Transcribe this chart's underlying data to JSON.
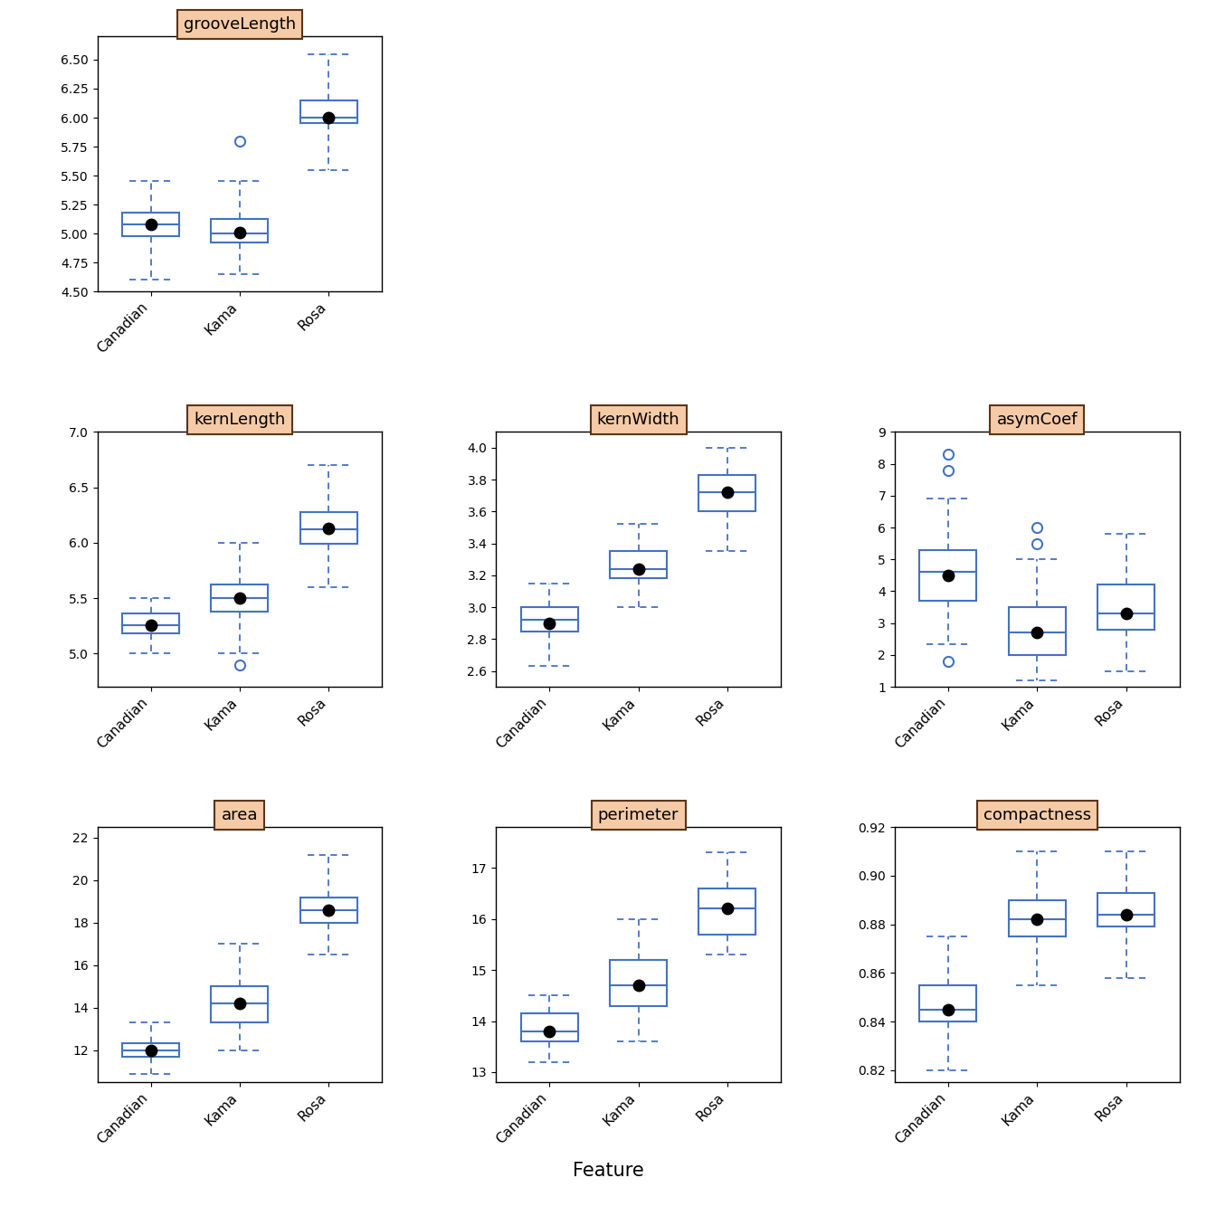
{
  "features": {
    "grooveLength": {
      "Canadian": {
        "q1": 4.98,
        "median": 5.08,
        "q3": 5.18,
        "whisker_low": 4.6,
        "whisker_high": 5.45,
        "mean": 5.08,
        "outliers": []
      },
      "Kama": {
        "q1": 4.92,
        "median": 5.0,
        "q3": 5.13,
        "whisker_low": 4.65,
        "whisker_high": 5.45,
        "mean": 5.01,
        "outliers": [
          5.8
        ]
      },
      "Rosa": {
        "q1": 5.95,
        "median": 6.0,
        "q3": 6.15,
        "whisker_low": 5.55,
        "whisker_high": 6.55,
        "mean": 6.0,
        "outliers": []
      }
    },
    "kernLength": {
      "Canadian": {
        "q1": 5.18,
        "median": 5.26,
        "q3": 5.36,
        "whisker_low": 5.0,
        "whisker_high": 5.5,
        "mean": 5.26,
        "outliers": []
      },
      "Kama": {
        "q1": 5.38,
        "median": 5.5,
        "q3": 5.62,
        "whisker_low": 5.0,
        "whisker_high": 6.0,
        "mean": 5.5,
        "outliers": [
          4.9
        ]
      },
      "Rosa": {
        "q1": 5.99,
        "median": 6.12,
        "q3": 6.28,
        "whisker_low": 5.6,
        "whisker_high": 6.7,
        "mean": 6.13,
        "outliers": []
      }
    },
    "kernWidth": {
      "Canadian": {
        "q1": 2.85,
        "median": 2.92,
        "q3": 3.0,
        "whisker_low": 2.63,
        "whisker_high": 3.15,
        "mean": 2.9,
        "outliers": []
      },
      "Kama": {
        "q1": 3.18,
        "median": 3.24,
        "q3": 3.35,
        "whisker_low": 3.0,
        "whisker_high": 3.52,
        "mean": 3.24,
        "outliers": []
      },
      "Rosa": {
        "q1": 3.6,
        "median": 3.72,
        "q3": 3.83,
        "whisker_low": 3.35,
        "whisker_high": 4.0,
        "mean": 3.72,
        "outliers": []
      }
    },
    "asymCoef": {
      "Canadian": {
        "q1": 3.7,
        "median": 4.6,
        "q3": 5.3,
        "whisker_low": 2.35,
        "whisker_high": 6.9,
        "mean": 4.5,
        "outliers": [
          1.8,
          8.3,
          7.8
        ]
      },
      "Kama": {
        "q1": 2.0,
        "median": 2.7,
        "q3": 3.5,
        "whisker_low": 1.2,
        "whisker_high": 5.0,
        "mean": 2.7,
        "outliers": [
          6.0,
          5.5
        ]
      },
      "Rosa": {
        "q1": 2.8,
        "median": 3.3,
        "q3": 4.2,
        "whisker_low": 1.5,
        "whisker_high": 5.8,
        "mean": 3.3,
        "outliers": []
      }
    },
    "area": {
      "Canadian": {
        "q1": 11.7,
        "median": 12.0,
        "q3": 12.35,
        "whisker_low": 10.9,
        "whisker_high": 13.3,
        "mean": 12.0,
        "outliers": []
      },
      "Kama": {
        "q1": 13.3,
        "median": 14.2,
        "q3": 15.0,
        "whisker_low": 12.0,
        "whisker_high": 17.0,
        "mean": 14.2,
        "outliers": []
      },
      "Rosa": {
        "q1": 18.0,
        "median": 18.6,
        "q3": 19.2,
        "whisker_low": 16.5,
        "whisker_high": 21.2,
        "mean": 18.6,
        "outliers": []
      }
    },
    "perimeter": {
      "Canadian": {
        "q1": 13.6,
        "median": 13.8,
        "q3": 14.15,
        "whisker_low": 13.2,
        "whisker_high": 14.5,
        "mean": 13.8,
        "outliers": []
      },
      "Kama": {
        "q1": 14.3,
        "median": 14.7,
        "q3": 15.2,
        "whisker_low": 13.6,
        "whisker_high": 16.0,
        "mean": 14.7,
        "outliers": []
      },
      "Rosa": {
        "q1": 15.7,
        "median": 16.2,
        "q3": 16.6,
        "whisker_low": 15.3,
        "whisker_high": 17.3,
        "mean": 16.2,
        "outliers": []
      }
    },
    "compactness": {
      "Canadian": {
        "q1": 0.84,
        "median": 0.845,
        "q3": 0.855,
        "whisker_low": 0.82,
        "whisker_high": 0.875,
        "mean": 0.845,
        "outliers": []
      },
      "Kama": {
        "q1": 0.875,
        "median": 0.882,
        "q3": 0.89,
        "whisker_low": 0.855,
        "whisker_high": 0.91,
        "mean": 0.882,
        "outliers": []
      },
      "Rosa": {
        "q1": 0.879,
        "median": 0.884,
        "q3": 0.893,
        "whisker_low": 0.858,
        "whisker_high": 0.91,
        "mean": 0.884,
        "outliers": []
      }
    }
  },
  "categories": [
    "Canadian",
    "Kama",
    "Rosa"
  ],
  "box_color": "#4472C4",
  "mean_color": "black",
  "title_bg": "#F5CBA7",
  "title_border": "#5C3317",
  "xlabel": "Feature",
  "grooveLength_ylim": [
    4.5,
    6.7
  ],
  "kernLength_ylim": [
    4.7,
    7.0
  ],
  "kernWidth_ylim": [
    2.5,
    4.1
  ],
  "asymCoef_ylim": [
    1.0,
    9.0
  ],
  "area_ylim": [
    10.5,
    22.5
  ],
  "perimeter_ylim": [
    12.8,
    17.8
  ],
  "compactness_ylim": [
    0.815,
    0.92
  ]
}
